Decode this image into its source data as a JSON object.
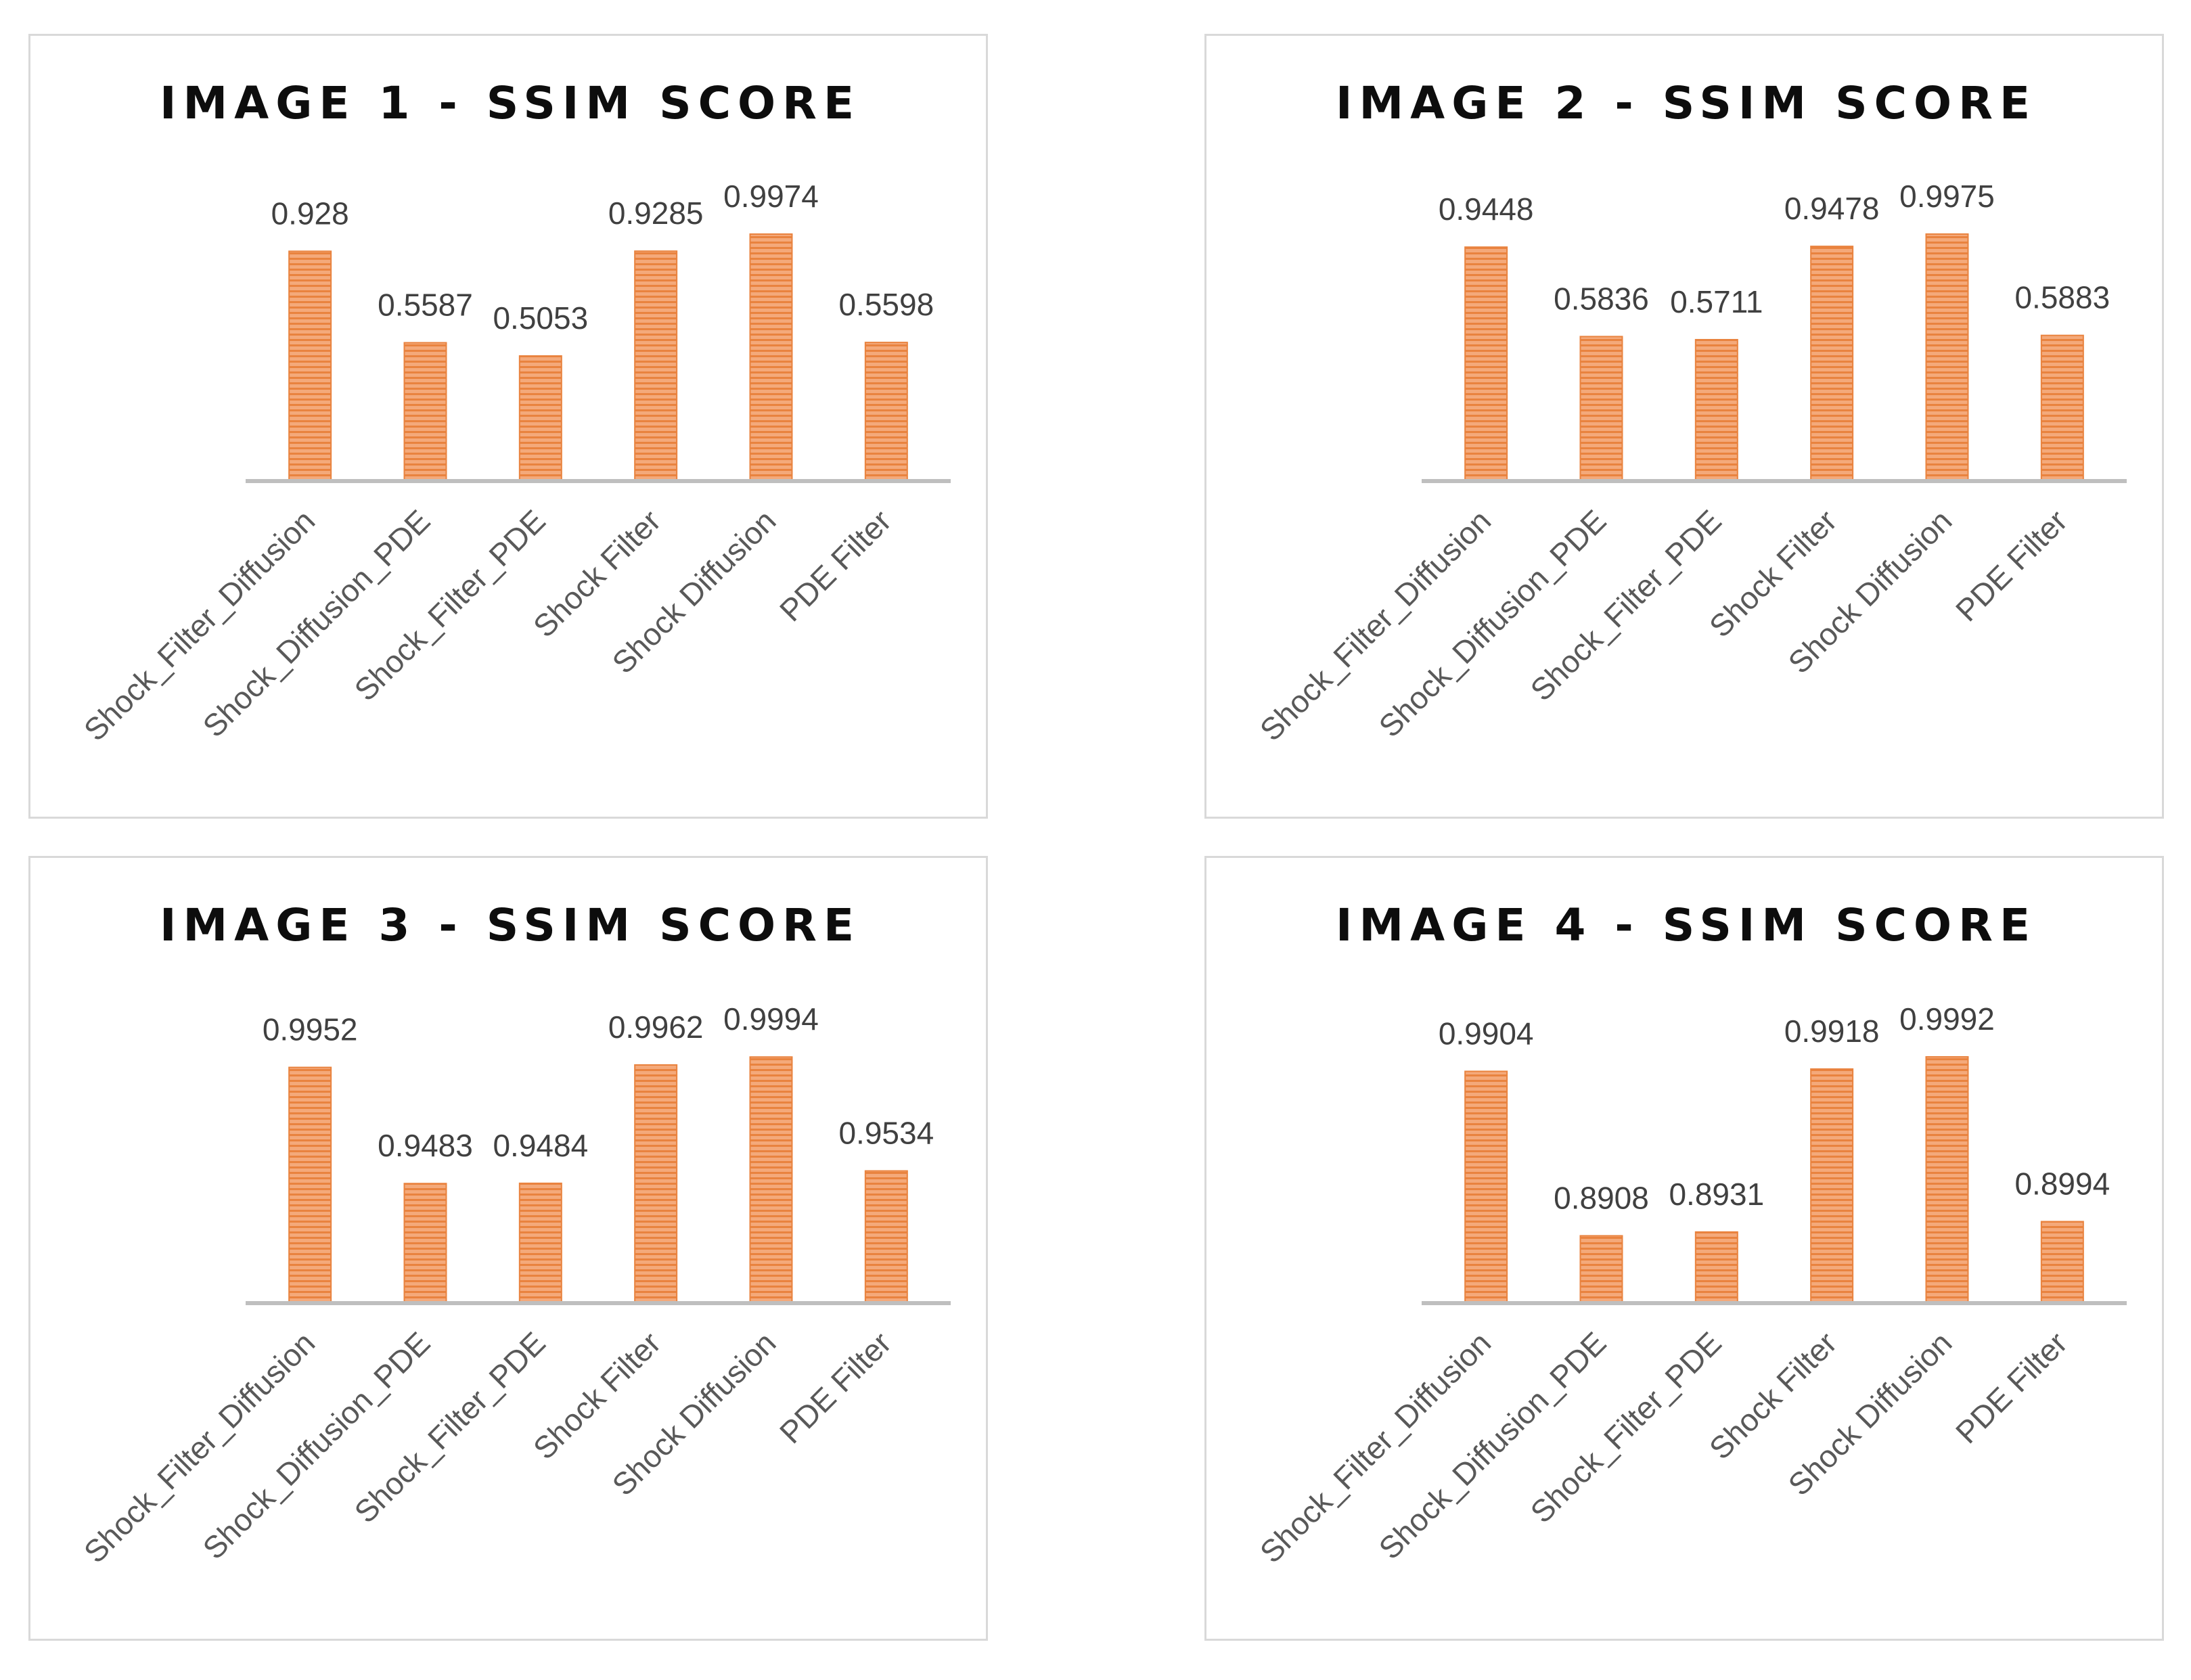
{
  "colors": {
    "bar": "#f4a97a",
    "bar_stripe": "#e9833f",
    "axis": "#bfbfbf",
    "border": "#d9d9d9"
  },
  "chart_data": [
    {
      "type": "bar",
      "title": "IMAGE 1 - SSIM SCORE",
      "categories": [
        "Shock_Filter_Diffusion",
        "Shock_Diffusion_PDE",
        "Shock_Filter_PDE",
        "Shock Filter",
        "Shock Diffusion",
        "PDE Filter"
      ],
      "values": [
        0.928,
        0.5587,
        0.5053,
        0.9285,
        0.9974,
        0.5598
      ],
      "data_labels": [
        "0.928",
        "0.5587",
        "0.5053",
        "0.9285",
        "0.9974",
        "0.5598"
      ],
      "ylim": [
        0,
        1
      ],
      "grid": false,
      "legend": "none"
    },
    {
      "type": "bar",
      "title": "IMAGE 2 - SSIM SCORE",
      "categories": [
        "Shock_Filter_Diffusion",
        "Shock_Diffusion_PDE",
        "Shock_Filter_PDE",
        "Shock Filter",
        "Shock Diffusion",
        "PDE Filter"
      ],
      "values": [
        0.9448,
        0.5836,
        0.5711,
        0.9478,
        0.9975,
        0.5883
      ],
      "data_labels": [
        "0.9448",
        "0.5836",
        "0.5711",
        "0.9478",
        "0.9975",
        "0.5883"
      ],
      "ylim": [
        0,
        1
      ],
      "grid": false,
      "legend": "none"
    },
    {
      "type": "bar",
      "title": "IMAGE 3 - SSIM SCORE",
      "categories": [
        "Shock_Filter_Diffusion",
        "Shock_Diffusion_PDE",
        "Shock_Filter_PDE",
        "Shock Filter",
        "Shock Diffusion",
        "PDE Filter"
      ],
      "values": [
        0.9952,
        0.9483,
        0.9484,
        0.9962,
        0.9994,
        0.9534
      ],
      "data_labels": [
        "0.9952",
        "0.9483",
        "0.9484",
        "0.9962",
        "0.9994",
        "0.9534"
      ],
      "ylim": [
        0.9,
        1
      ],
      "grid": false,
      "legend": "none"
    },
    {
      "type": "bar",
      "title": "IMAGE 4 - SSIM SCORE",
      "categories": [
        "Shock_Filter_Diffusion",
        "Shock_Diffusion_PDE",
        "Shock_Filter_PDE",
        "Shock Filter",
        "Shock Diffusion",
        "PDE Filter"
      ],
      "values": [
        0.9904,
        0.8908,
        0.8931,
        0.9918,
        0.9992,
        0.8994
      ],
      "data_labels": [
        "0.9904",
        "0.8908",
        "0.8931",
        "0.9918",
        "0.9992",
        "0.8994"
      ],
      "ylim": [
        0.85,
        1
      ],
      "grid": false,
      "legend": "none"
    }
  ]
}
